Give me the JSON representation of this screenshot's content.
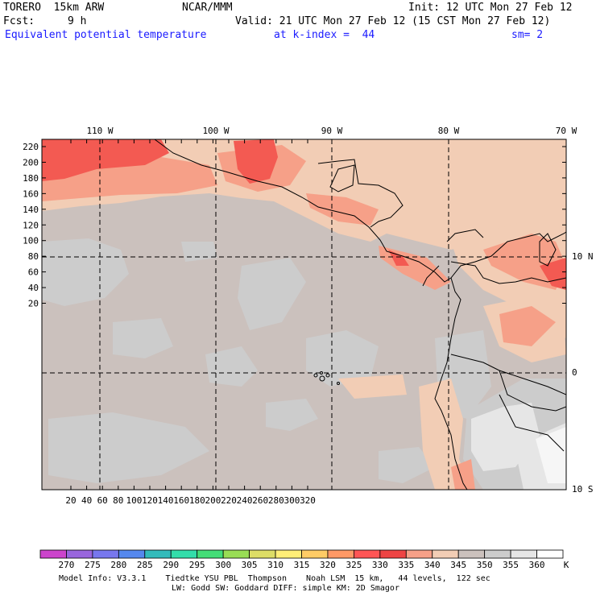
{
  "header": {
    "model": "TORERO  15km ARW",
    "center": "NCAR/MMM",
    "init": "Init: 12 UTC Mon 27 Feb 12",
    "fcst_label": "Fcst:",
    "fcst_value": "9 h",
    "valid": "Valid: 21 UTC Mon 27 Feb 12 (15 CST Mon 27 Feb 12)",
    "field": "Equivalent potential temperature",
    "level": "at k-index =  44",
    "smooth": "sm= 2"
  },
  "axes": {
    "lon_labels": [
      "110 W",
      "100 W",
      "90 W",
      "80 W",
      "70 W"
    ],
    "lat_labels": [
      "10 N",
      "0",
      "10 S"
    ],
    "y_ticks": [
      "220",
      "200",
      "180",
      "160",
      "140",
      "120",
      "100",
      "80",
      "60",
      "40",
      "20"
    ],
    "x_ticks": [
      "20",
      "40",
      "60",
      "80",
      "100",
      "120",
      "140",
      "160",
      "180",
      "200",
      "220",
      "240",
      "260",
      "280",
      "300",
      "320"
    ]
  },
  "colorbar": {
    "labels": [
      "270",
      "275",
      "280",
      "285",
      "290",
      "295",
      "300",
      "305",
      "310",
      "315",
      "320",
      "325",
      "330",
      "335",
      "340",
      "345",
      "350",
      "355",
      "360"
    ],
    "unit": "K",
    "colors": [
      "#cc44cc",
      "#9966dd",
      "#7777ee",
      "#5588ee",
      "#33bbbb",
      "#33ddaa",
      "#44dd77",
      "#99dd55",
      "#dddd66",
      "#ffee77",
      "#ffcc66",
      "#ff9966",
      "#ff5555",
      "#ee4444",
      "#f6a088",
      "#f2cdb5",
      "#cbc1bd",
      "#cccccc",
      "#e6e6e6",
      "#ffffff"
    ]
  },
  "footer": {
    "line1": "Model Info: V3.3.1    Tiedtke YSU PBL  Thompson    Noah LSM  15 km,   44 levels,  122 sec",
    "line2": "LW: Godd SW: Goddard DIFF: simple KM: 2D Smagor"
  }
}
